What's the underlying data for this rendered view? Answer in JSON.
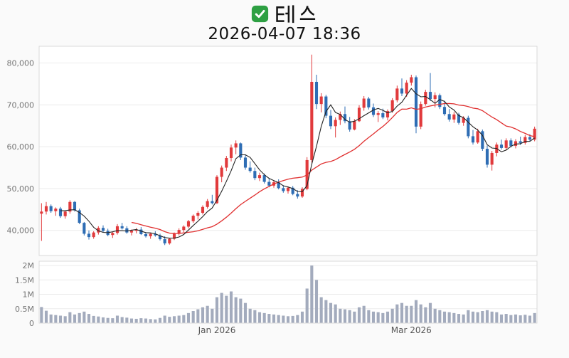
{
  "header": {
    "checkbox_icon": "green-checkbox",
    "title": "테스",
    "subtitle": "2026-04-07 18:36"
  },
  "chart_data": {
    "type": "candlestick_with_volume",
    "title": "테스",
    "subtitle": "2026-04-07 18:36",
    "colors": {
      "up": "#e13a3c",
      "down": "#2e6db4",
      "ma_short": "#222222",
      "ma_long": "#e03030",
      "volume_bar": "#a3abbd",
      "grid": "#ececec",
      "axis_text": "#767676",
      "plot_border": "#d9d9d9",
      "plot_bg": "#ffffff",
      "page_bg": "#fafafa"
    },
    "ma_periods": {
      "short": 5,
      "long": 20
    },
    "price_axis": {
      "min": 34000,
      "max": 84000,
      "ticks": [
        40000,
        50000,
        60000,
        70000,
        80000
      ],
      "tick_labels": [
        "40,000",
        "50,000",
        "60,000",
        "70,000",
        "80,000"
      ]
    },
    "volume_axis": {
      "max": 2150000,
      "ticks": [
        0,
        500000,
        1000000,
        1500000,
        2000000
      ],
      "tick_labels": [
        "0",
        "0.5M",
        "1M",
        "1.5M",
        "2M"
      ]
    },
    "x_axis": {
      "labels": [
        {
          "text": "Jan 2026",
          "index": 37
        },
        {
          "text": "Mar 2026",
          "index": 78
        }
      ]
    },
    "candles": [
      [
        "2025-11-10",
        44000,
        46500,
        37500,
        44500,
        560000
      ],
      [
        "2025-11-11",
        44500,
        46800,
        43800,
        45800,
        430000
      ],
      [
        "2025-11-12",
        45800,
        46200,
        44200,
        44600,
        300000
      ],
      [
        "2025-11-13",
        44600,
        45500,
        43500,
        45200,
        280000
      ],
      [
        "2025-11-14",
        45200,
        45600,
        43000,
        43400,
        260000
      ],
      [
        "2025-11-17",
        43400,
        44800,
        42800,
        44500,
        240000
      ],
      [
        "2025-11-18",
        44500,
        47200,
        44000,
        46800,
        380000
      ],
      [
        "2025-11-19",
        46800,
        47000,
        44500,
        44800,
        300000
      ],
      [
        "2025-11-20",
        44800,
        45200,
        41500,
        41800,
        350000
      ],
      [
        "2025-11-21",
        41800,
        42000,
        38800,
        39200,
        400000
      ],
      [
        "2025-11-24",
        39200,
        40000,
        37800,
        38400,
        320000
      ],
      [
        "2025-11-25",
        38400,
        39800,
        38000,
        39500,
        250000
      ],
      [
        "2025-11-26",
        39500,
        41000,
        39000,
        40600,
        230000
      ],
      [
        "2025-11-27",
        40600,
        41200,
        39600,
        39900,
        200000
      ],
      [
        "2025-11-28",
        39900,
        40400,
        38600,
        38900,
        180000
      ],
      [
        "2025-12-01",
        38900,
        39600,
        38200,
        39400,
        170000
      ],
      [
        "2025-12-02",
        39400,
        41500,
        39000,
        41000,
        260000
      ],
      [
        "2025-12-03",
        41000,
        41800,
        40200,
        40500,
        210000
      ],
      [
        "2025-12-04",
        40500,
        41000,
        39200,
        39500,
        190000
      ],
      [
        "2025-12-05",
        39500,
        40200,
        38800,
        39900,
        160000
      ],
      [
        "2025-12-08",
        39900,
        40600,
        39300,
        40200,
        150000
      ],
      [
        "2025-12-09",
        40200,
        40800,
        38900,
        39100,
        170000
      ],
      [
        "2025-12-10",
        39100,
        39600,
        38300,
        38600,
        160000
      ],
      [
        "2025-12-11",
        38600,
        39400,
        38000,
        39200,
        140000
      ],
      [
        "2025-12-12",
        39200,
        39800,
        38500,
        38800,
        130000
      ],
      [
        "2025-12-15",
        38800,
        39200,
        37600,
        37900,
        180000
      ],
      [
        "2025-12-16",
        37900,
        38600,
        36500,
        36900,
        260000
      ],
      [
        "2025-12-17",
        36900,
        38200,
        36600,
        38000,
        220000
      ],
      [
        "2025-12-18",
        38000,
        39500,
        37700,
        39200,
        240000
      ],
      [
        "2025-12-19",
        39200,
        40500,
        38800,
        40100,
        260000
      ],
      [
        "2025-12-22",
        40100,
        41200,
        39600,
        40900,
        280000
      ],
      [
        "2025-12-23",
        40900,
        42500,
        40500,
        42200,
        350000
      ],
      [
        "2025-12-24",
        42200,
        43800,
        41800,
        43500,
        420000
      ],
      [
        "2025-12-26",
        43500,
        44600,
        42600,
        44200,
        480000
      ],
      [
        "2025-12-29",
        44200,
        46000,
        43800,
        45600,
        550000
      ],
      [
        "2025-12-30",
        45600,
        47500,
        45200,
        47000,
        600000
      ],
      [
        "2025-12-31",
        47000,
        48500,
        46200,
        46500,
        500000
      ],
      [
        "2026-01-02",
        46500,
        53200,
        46300,
        52800,
        900000
      ],
      [
        "2026-01-05",
        52800,
        55500,
        51500,
        55000,
        1050000
      ],
      [
        "2026-01-06",
        55000,
        57800,
        54200,
        57300,
        950000
      ],
      [
        "2026-01-07",
        57300,
        60500,
        56500,
        59800,
        1100000
      ],
      [
        "2026-01-08",
        59800,
        61500,
        58200,
        60800,
        900000
      ],
      [
        "2026-01-09",
        60800,
        61000,
        56800,
        57400,
        850000
      ],
      [
        "2026-01-12",
        57400,
        58200,
        54500,
        55000,
        700000
      ],
      [
        "2026-01-13",
        55000,
        56500,
        53800,
        54200,
        500000
      ],
      [
        "2026-01-14",
        54200,
        55000,
        52000,
        52500,
        450000
      ],
      [
        "2026-01-15",
        52500,
        53800,
        51800,
        53200,
        380000
      ],
      [
        "2026-01-16",
        53200,
        53600,
        51200,
        51600,
        350000
      ],
      [
        "2026-01-19",
        51600,
        52400,
        50300,
        50700,
        320000
      ],
      [
        "2026-01-20",
        50700,
        52000,
        50200,
        51500,
        300000
      ],
      [
        "2026-01-21",
        51500,
        52200,
        49800,
        50100,
        280000
      ],
      [
        "2026-01-22",
        50100,
        50800,
        49000,
        49400,
        260000
      ],
      [
        "2026-01-23",
        49400,
        50500,
        48800,
        50200,
        240000
      ],
      [
        "2026-01-26",
        50200,
        50600,
        48400,
        48700,
        250000
      ],
      [
        "2026-01-27",
        48700,
        49600,
        47600,
        48100,
        280000
      ],
      [
        "2026-01-28",
        48100,
        50300,
        47800,
        49900,
        400000
      ],
      [
        "2026-01-29",
        49900,
        57500,
        49600,
        56800,
        1200000
      ],
      [
        "2026-01-30",
        56800,
        82000,
        56200,
        75500,
        2000000
      ],
      [
        "2026-02-02",
        75500,
        77200,
        69000,
        70200,
        1500000
      ],
      [
        "2026-02-03",
        70200,
        72800,
        68200,
        72000,
        900000
      ],
      [
        "2026-02-04",
        72000,
        72400,
        66800,
        67400,
        800000
      ],
      [
        "2026-02-05",
        67400,
        68800,
        64200,
        64900,
        700000
      ],
      [
        "2026-02-06",
        64900,
        67000,
        62200,
        66400,
        650000
      ],
      [
        "2026-02-09",
        66400,
        68400,
        65200,
        67800,
        500000
      ],
      [
        "2026-02-10",
        67800,
        69600,
        65600,
        66100,
        480000
      ],
      [
        "2026-02-11",
        66100,
        67100,
        63600,
        64100,
        450000
      ],
      [
        "2026-02-12",
        64100,
        66600,
        63900,
        66100,
        400000
      ],
      [
        "2026-02-13",
        66100,
        69900,
        65900,
        69300,
        550000
      ],
      [
        "2026-02-16",
        69300,
        72100,
        68600,
        71500,
        600000
      ],
      [
        "2026-02-17",
        71500,
        71900,
        68900,
        69400,
        450000
      ],
      [
        "2026-02-18",
        69400,
        70300,
        67100,
        67600,
        400000
      ],
      [
        "2026-02-19",
        67600,
        68500,
        65900,
        68000,
        380000
      ],
      [
        "2026-02-20",
        68000,
        69100,
        66600,
        67000,
        350000
      ],
      [
        "2026-02-23",
        67000,
        68900,
        66300,
        68500,
        400000
      ],
      [
        "2026-02-24",
        68500,
        71600,
        68100,
        71100,
        500000
      ],
      [
        "2026-02-25",
        71100,
        74600,
        70600,
        73900,
        650000
      ],
      [
        "2026-02-26",
        73900,
        76300,
        72100,
        72700,
        700000
      ],
      [
        "2026-02-27",
        72700,
        75900,
        71900,
        75300,
        600000
      ],
      [
        "2026-03-02",
        75300,
        77200,
        74600,
        76600,
        600000
      ],
      [
        "2026-03-03",
        76600,
        77000,
        63200,
        64800,
        800000
      ],
      [
        "2026-03-04",
        64800,
        70800,
        64200,
        70200,
        650000
      ],
      [
        "2026-03-05",
        70200,
        73600,
        69800,
        73100,
        550000
      ],
      [
        "2026-03-06",
        73100,
        77600,
        70900,
        71400,
        700000
      ],
      [
        "2026-03-09",
        71400,
        73000,
        69400,
        72300,
        500000
      ],
      [
        "2026-03-10",
        72300,
        72700,
        69000,
        69500,
        450000
      ],
      [
        "2026-03-11",
        69500,
        71000,
        67400,
        67800,
        400000
      ],
      [
        "2026-03-12",
        67800,
        69000,
        66000,
        66500,
        380000
      ],
      [
        "2026-03-13",
        66500,
        68300,
        65700,
        67700,
        350000
      ],
      [
        "2026-03-16",
        67700,
        68100,
        65300,
        65700,
        320000
      ],
      [
        "2026-03-17",
        65700,
        67300,
        65000,
        66900,
        300000
      ],
      [
        "2026-03-18",
        66900,
        67400,
        62000,
        62500,
        450000
      ],
      [
        "2026-03-19",
        62500,
        64000,
        60500,
        61000,
        400000
      ],
      [
        "2026-03-20",
        61000,
        64300,
        60700,
        63700,
        380000
      ],
      [
        "2026-03-23",
        63700,
        64100,
        59000,
        59500,
        420000
      ],
      [
        "2026-03-24",
        59500,
        60300,
        55000,
        55700,
        450000
      ],
      [
        "2026-03-25",
        55700,
        59000,
        54300,
        58500,
        400000
      ],
      [
        "2026-03-26",
        58500,
        61000,
        57700,
        60500,
        380000
      ],
      [
        "2026-03-27",
        60500,
        61700,
        59300,
        59700,
        300000
      ],
      [
        "2026-03-30",
        59700,
        62000,
        59100,
        61500,
        320000
      ],
      [
        "2026-03-31",
        61500,
        62000,
        59800,
        60200,
        280000
      ],
      [
        "2026-04-01",
        60200,
        61800,
        59600,
        61300,
        300000
      ],
      [
        "2026-04-02",
        61300,
        62400,
        60400,
        60900,
        270000
      ],
      [
        "2026-04-03",
        60900,
        62800,
        60500,
        62300,
        290000
      ],
      [
        "2026-04-06",
        62300,
        63000,
        61200,
        61700,
        260000
      ],
      [
        "2026-04-07",
        61700,
        64800,
        61300,
        64300,
        350000
      ]
    ]
  }
}
